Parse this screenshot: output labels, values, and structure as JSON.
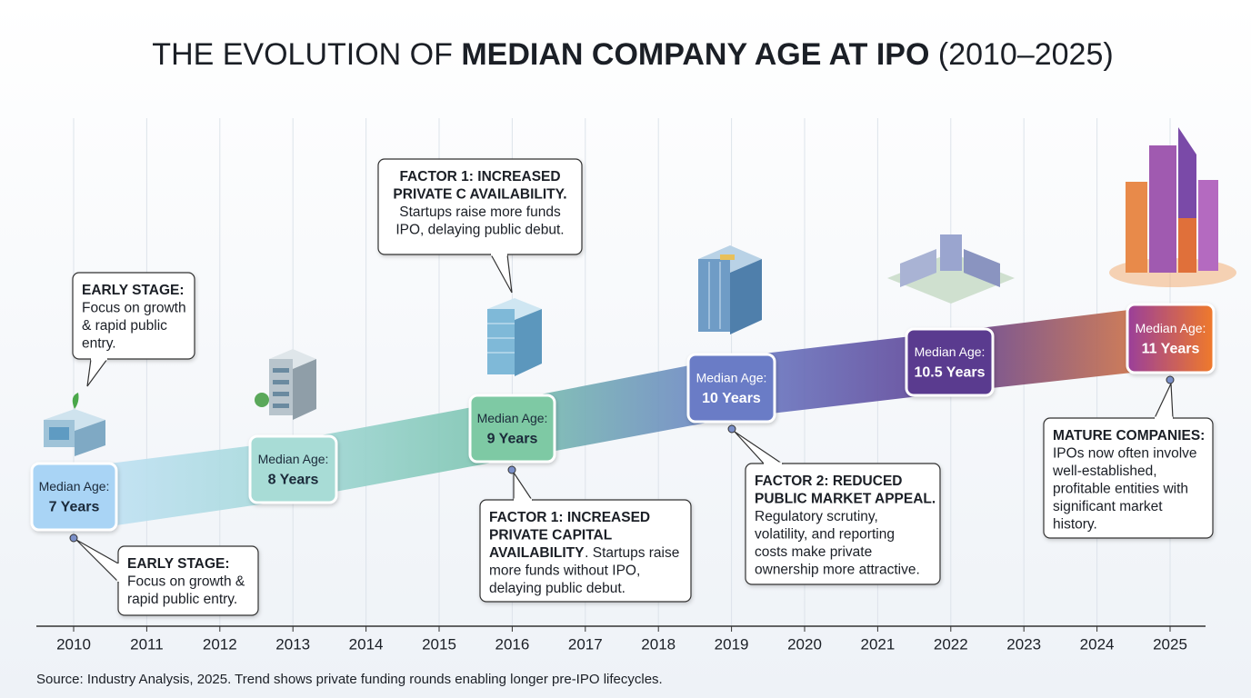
{
  "title": {
    "lead": "THE EVOLUTION OF ",
    "bold": "MEDIAN COMPANY AGE AT IPO",
    "tail": " (2010–2025)"
  },
  "years": [
    "2010",
    "2011",
    "2012",
    "2013",
    "2014",
    "2015",
    "2016",
    "2017",
    "2018",
    "2019",
    "2020",
    "2021",
    "2022",
    "2023",
    "2024",
    "2025"
  ],
  "milestones": [
    {
      "label": "Median Age:",
      "value": "7 Years"
    },
    {
      "label": "Median Age:",
      "value": "8 Years"
    },
    {
      "label": "Median Age:",
      "value": "9 Years"
    },
    {
      "label": "Median Age:",
      "value": "10 Years"
    },
    {
      "label": "Median Age:",
      "value": "10.5 Years"
    },
    {
      "label": "Median Age:",
      "value": "11 Years"
    }
  ],
  "callouts": [
    {
      "heading": [
        "EARLY STAGE:"
      ],
      "body": [
        "Focus on growth",
        "& rapid public",
        "entry."
      ]
    },
    {
      "heading": [
        "EARLY STAGE:"
      ],
      "body": [
        "Focus on growth &",
        "rapid public entry."
      ]
    },
    {
      "heading": [
        "FACTOR 1: INCREASED",
        "PRIVATE C AVAILABILITY."
      ],
      "body": [
        "Startups raise more funds",
        "IPO, delaying public debut."
      ]
    },
    {
      "heading": [
        "FACTOR 1: INCREASED",
        "PRIVATE CAPITAL",
        "AVAILABILITY"
      ],
      "body": [
        ". Startups raise",
        "more funds without IPO,",
        "delaying public debut."
      ]
    },
    {
      "heading": [
        "FACTOR 2: REDUCED",
        "PUBLIC MARKET APPEAL."
      ],
      "body": [
        "Regulatory scrutiny,",
        "volatility, and reporting",
        "costs make private",
        "ownership more attractive."
      ]
    },
    {
      "heading": [
        "MATURE COMPANIES:"
      ],
      "body": [
        "IPOs now often involve",
        "well-established,",
        "profitable entities with",
        "significant market",
        "history."
      ]
    }
  ],
  "source": "Source: Industry Analysis, 2025. Trend shows private funding rounds enabling longer pre-IPO lifecycles."
}
